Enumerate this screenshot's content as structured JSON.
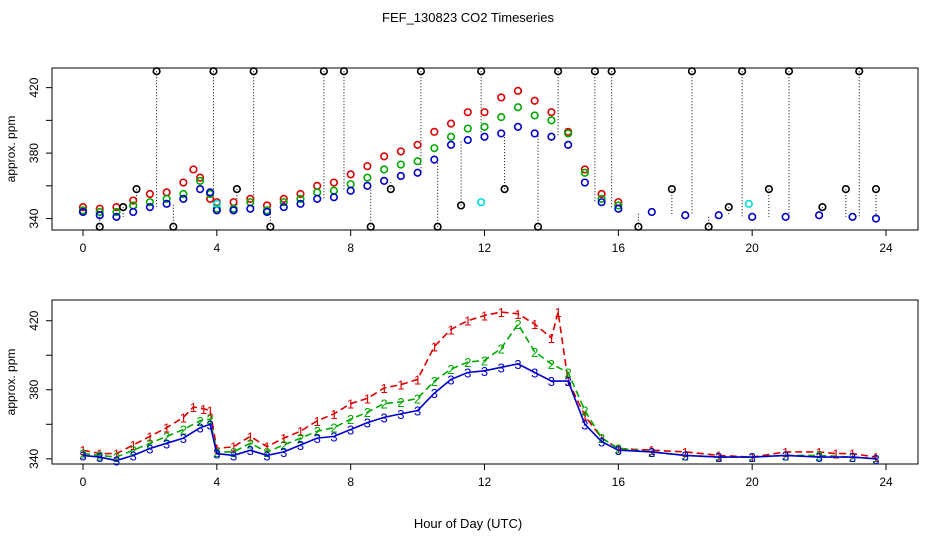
{
  "title": "FEF_130823  CO2 Timeseries",
  "xlabel": "Hour of Day (UTC)",
  "colors": {
    "series1": "#dd0000",
    "series2": "#00aa00",
    "series3": "#0000cc",
    "flagged": "#000000",
    "cyan": "#00dddd"
  },
  "chart_data": [
    {
      "type": "scatter",
      "panel": "top",
      "ylabel": "approx. ppm",
      "xlim": [
        0,
        24
      ],
      "ylim": [
        333,
        432
      ],
      "xticks": [
        0,
        4,
        8,
        12,
        16,
        20,
        24
      ],
      "yticks": [
        340,
        360,
        380,
        400,
        420
      ],
      "ytick_labels": [
        "340",
        "",
        "380",
        "",
        "420"
      ],
      "marker": "open circle",
      "series": [
        {
          "name": "1",
          "color": "#dd0000",
          "x": [
            0,
            0.5,
            1,
            1.5,
            2,
            2.5,
            3,
            3.3,
            3.5,
            3.8,
            4,
            4.5,
            5,
            5.5,
            6,
            6.5,
            7,
            7.5,
            8,
            8.5,
            9,
            9.5,
            10,
            10.5,
            11,
            11.5,
            12,
            12.5,
            13,
            13.5,
            14,
            14.5,
            15,
            15.5,
            16
          ],
          "y": [
            347,
            346,
            347,
            351,
            355,
            356,
            362,
            370,
            365,
            352,
            350,
            350,
            352,
            348,
            352,
            355,
            360,
            362,
            367,
            372,
            378,
            381,
            385,
            393,
            398,
            405,
            405,
            414,
            418,
            412,
            405,
            393,
            370,
            355,
            350
          ]
        },
        {
          "name": "2",
          "color": "#00aa00",
          "x": [
            0,
            0.5,
            1,
            1.5,
            2,
            2.5,
            3,
            3.5,
            3.8,
            4,
            4.5,
            5,
            5.5,
            6,
            6.5,
            7,
            7.5,
            8,
            8.5,
            9,
            9.5,
            10,
            10.5,
            11,
            11.5,
            12,
            12.5,
            13,
            13.5,
            14,
            14.5,
            15,
            15.5,
            16
          ],
          "y": [
            345,
            344,
            344,
            348,
            350,
            352,
            355,
            363,
            355,
            346,
            346,
            350,
            345,
            350,
            352,
            356,
            357,
            361,
            365,
            370,
            373,
            375,
            383,
            390,
            395,
            396,
            402,
            408,
            403,
            400,
            392,
            368,
            352,
            348
          ]
        },
        {
          "name": "3",
          "color": "#0000cc",
          "x": [
            0,
            0.5,
            1,
            1.5,
            2,
            2.5,
            3,
            3.5,
            3.8,
            4,
            4.5,
            5,
            5.5,
            6,
            6.5,
            7,
            7.5,
            8,
            8.5,
            9,
            9.5,
            10,
            10.5,
            11,
            11.5,
            12,
            12.5,
            13,
            13.5,
            14,
            14.5,
            15,
            15.5,
            16,
            17,
            18,
            19,
            20,
            21,
            22,
            23,
            23.7
          ],
          "y": [
            344,
            342,
            341,
            344,
            347,
            349,
            352,
            358,
            356,
            345,
            345,
            346,
            344,
            347,
            349,
            352,
            353,
            357,
            360,
            363,
            366,
            368,
            376,
            385,
            388,
            390,
            392,
            396,
            392,
            390,
            385,
            362,
            350,
            346,
            344,
            342,
            342,
            341,
            341,
            342,
            341,
            340
          ]
        },
        {
          "name": "flagged",
          "color": "#000000",
          "x": [
            0.5,
            1.2,
            1.6,
            2.2,
            2.7,
            3.9,
            4.6,
            5.1,
            5.6,
            7.2,
            7.8,
            8.6,
            9.2,
            10.1,
            10.6,
            11.3,
            11.9,
            12.6,
            13.6,
            14.2,
            15.3,
            15.8,
            16.6,
            17.6,
            18.2,
            18.7,
            19.3,
            19.7,
            20.5,
            21.1,
            22.1,
            22.8,
            23.2,
            23.7
          ],
          "y": [
            335,
            347,
            358,
            430,
            335,
            430,
            358,
            430,
            335,
            430,
            430,
            335,
            358,
            430,
            335,
            348,
            430,
            358,
            335,
            430,
            430,
            430,
            335,
            358,
            430,
            335,
            347,
            430,
            358,
            430,
            347,
            358,
            430,
            358
          ]
        },
        {
          "name": "cyan",
          "color": "#00dddd",
          "x": [
            4.0,
            11.9,
            19.9
          ],
          "y": [
            349,
            350,
            349
          ]
        }
      ]
    },
    {
      "type": "line",
      "panel": "bottom",
      "ylabel": "approx. ppm",
      "xlim": [
        0,
        24
      ],
      "ylim": [
        337,
        432
      ],
      "xticks": [
        0,
        4,
        8,
        12,
        16,
        20,
        24
      ],
      "yticks": [
        340,
        360,
        380,
        400,
        420
      ],
      "ytick_labels": [
        "340",
        "",
        "380",
        "",
        "420"
      ],
      "marker": "digit labels 1, 2, 3",
      "series": [
        {
          "name": "1",
          "label": "1",
          "color": "#dd0000",
          "dash": "dashed",
          "x": [
            0,
            0.5,
            1,
            1.5,
            2,
            2.5,
            3,
            3.3,
            3.6,
            3.8,
            4,
            4.5,
            5,
            5.5,
            6,
            6.5,
            7,
            7.5,
            8,
            8.5,
            9,
            9.5,
            10,
            10.5,
            11,
            11.5,
            12,
            12.5,
            13,
            13.5,
            14,
            14.2,
            14.5,
            15,
            15.5,
            16,
            17,
            18,
            19,
            20,
            21,
            22,
            22.5,
            23,
            23.7
          ],
          "y": [
            345,
            343,
            343,
            348,
            353,
            358,
            364,
            370,
            369,
            368,
            346,
            347,
            353,
            347,
            352,
            356,
            362,
            366,
            372,
            375,
            381,
            383,
            386,
            405,
            415,
            420,
            423,
            425,
            424,
            418,
            410,
            425,
            385,
            365,
            352,
            346,
            345,
            344,
            342,
            341,
            344,
            344,
            343,
            343,
            341
          ]
        },
        {
          "name": "2",
          "label": "2",
          "color": "#00aa00",
          "dash": "dashed",
          "x": [
            0,
            0.5,
            1,
            1.5,
            2,
            2.5,
            3,
            3.5,
            3.8,
            4,
            4.5,
            5,
            5.5,
            6,
            6.5,
            7,
            7.5,
            8,
            8.5,
            9,
            9.5,
            10,
            10.5,
            11,
            11.5,
            12,
            12.5,
            13,
            13.5,
            14,
            14.5,
            15,
            15.5,
            16,
            17,
            18,
            19,
            20,
            21,
            22,
            23,
            23.7
          ],
          "y": [
            343,
            342,
            341,
            345,
            349,
            353,
            357,
            362,
            363,
            344,
            344,
            349,
            344,
            348,
            352,
            356,
            358,
            363,
            367,
            372,
            373,
            375,
            385,
            392,
            396,
            397,
            404,
            418,
            402,
            395,
            390,
            368,
            352,
            346,
            344,
            342,
            341,
            341,
            342,
            342,
            341,
            340
          ]
        },
        {
          "name": "3",
          "label": "3",
          "color": "#0000cc",
          "dash": "solid",
          "x": [
            0,
            0.5,
            1,
            1.5,
            2,
            2.5,
            3,
            3.5,
            3.8,
            4,
            4.5,
            5,
            5.5,
            6,
            6.5,
            7,
            7.5,
            8,
            8.5,
            9,
            9.5,
            10,
            10.5,
            11,
            11.5,
            12,
            12.5,
            13,
            13.5,
            14,
            14.5,
            15,
            15.5,
            16,
            17,
            18,
            19,
            20,
            21,
            22,
            23,
            23.7
          ],
          "y": [
            342,
            341,
            339,
            342,
            346,
            349,
            352,
            358,
            360,
            343,
            342,
            345,
            342,
            344,
            348,
            352,
            353,
            357,
            361,
            364,
            366,
            368,
            378,
            386,
            390,
            391,
            393,
            395,
            390,
            385,
            385,
            360,
            350,
            345,
            344,
            342,
            341,
            341,
            342,
            341,
            341,
            340
          ]
        }
      ]
    }
  ]
}
